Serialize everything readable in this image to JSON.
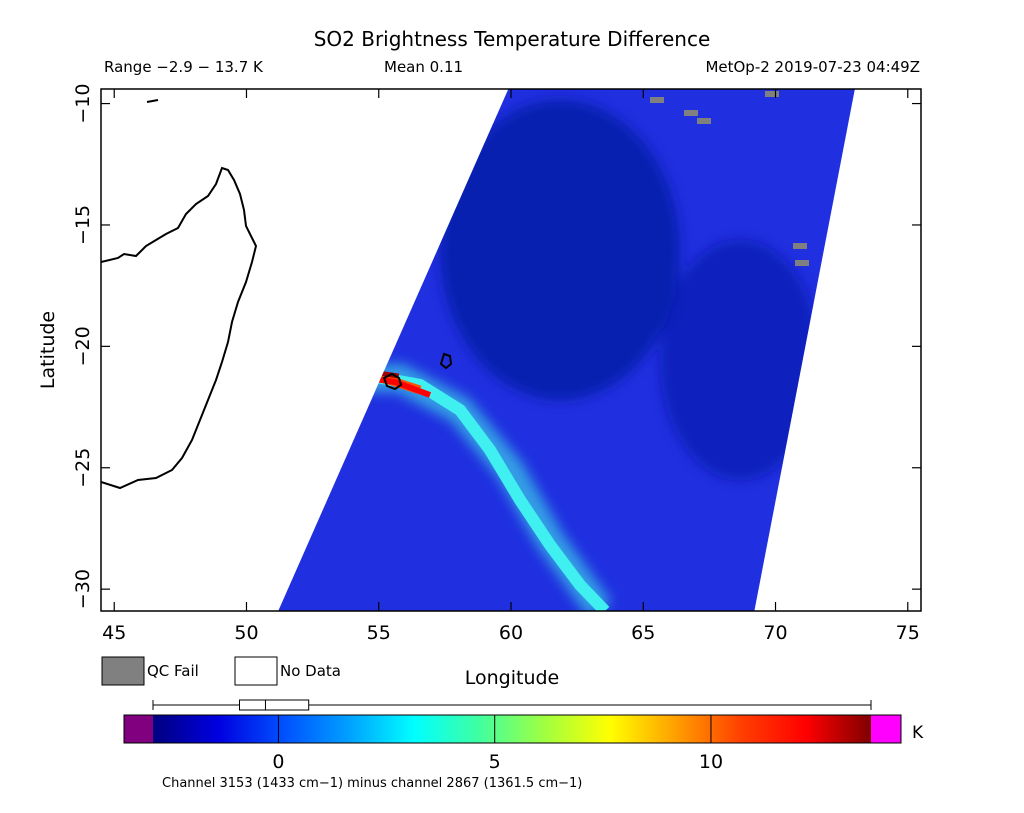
{
  "title": "SO2 Brightness Temperature Difference",
  "header": {
    "range": "Range −2.9 − 13.7 K",
    "mean": "Mean 0.11",
    "satellite_time": "MetOp-2 2019-07-23 04:49Z"
  },
  "map": {
    "xlabel": "Longitude",
    "ylabel": "Latitude",
    "xlim": [
      44.5,
      75.5
    ],
    "ylim": [
      -30.9,
      -9.4
    ],
    "x_ticks": [
      45,
      50,
      55,
      60,
      65,
      70,
      75
    ],
    "x_tick_labels": [
      "45",
      "50",
      "55",
      "60",
      "65",
      "70",
      "75"
    ],
    "y_ticks": [
      -10,
      -15,
      -20,
      -25,
      -30
    ],
    "y_tick_labels": [
      "−10",
      "−15",
      "−20",
      "−25",
      "−30"
    ],
    "swath_edges": {
      "left": [
        [
          51.2,
          -30.9
        ],
        [
          59.9,
          -9.4
        ]
      ],
      "right": [
        [
          69.2,
          -30.9
        ],
        [
          73.0,
          -9.4
        ]
      ]
    },
    "so2_plume_peak": {
      "lon": 55,
      "lat": -21.1,
      "value_K": 13.5
    },
    "colors": {
      "background": "#2030e0",
      "low": "#000090",
      "plume_peak": "#a00000",
      "qc_fail": "#808080"
    }
  },
  "legend": {
    "qc_fail": "QC Fail",
    "no_data": "No Data",
    "qc_fail_color": "#808080",
    "no_data_color": "#ffffff"
  },
  "colorbar": {
    "unit": "K",
    "vmin": -2.9,
    "vmax": 13.7,
    "ticks": [
      0,
      5,
      10
    ],
    "tick_labels": [
      "0",
      "5",
      "10"
    ],
    "under_color": "#800080",
    "over_color": "#ff00ff",
    "stops": [
      "#000080",
      "#0000e0",
      "#0050ff",
      "#00a0ff",
      "#00ffff",
      "#40ffa0",
      "#a0ff40",
      "#ffff00",
      "#ffa000",
      "#ff4000",
      "#ff0000",
      "#800000"
    ],
    "boxplot": {
      "min": -2.9,
      "q1": -0.9,
      "median": -0.3,
      "q3": 0.7,
      "max": 13.7
    }
  },
  "footer": "Channel 3153 (1433 cm−1) minus channel 2867 (1361.5 cm−1)"
}
